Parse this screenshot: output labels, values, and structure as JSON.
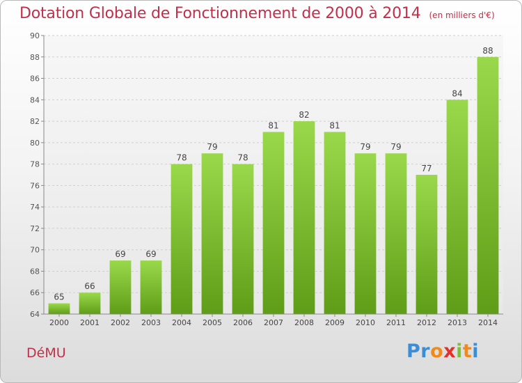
{
  "chart_data": {
    "type": "bar",
    "title": "Dotation Globale de Fonctionnement de 2000 à 2014",
    "unit": "(en milliers d'€)",
    "xlabel": "",
    "ylabel": "",
    "categories": [
      "2000",
      "2001",
      "2002",
      "2003",
      "2004",
      "2005",
      "2006",
      "2007",
      "2008",
      "2009",
      "2010",
      "2011",
      "2012",
      "2013",
      "2014"
    ],
    "values": [
      65,
      66,
      69,
      69,
      78,
      79,
      78,
      81,
      82,
      81,
      79,
      79,
      77,
      84,
      88
    ],
    "ylim": [
      64,
      90
    ],
    "yticks": [
      64,
      66,
      68,
      70,
      72,
      74,
      76,
      78,
      80,
      82,
      84,
      86,
      88,
      90
    ],
    "grid": true,
    "bar_color_top": "#9ad84b",
    "bar_color_bottom": "#5f9d18"
  },
  "footer": {
    "commune": "DéMU",
    "logo_letters": [
      {
        "char": "P",
        "color": "#3a8ed8"
      },
      {
        "char": "r",
        "color": "#3a8ed8"
      },
      {
        "char": "o",
        "color": "#f08a1c"
      },
      {
        "char": "x",
        "color": "#e0322a"
      },
      {
        "char": "i",
        "color": "#7cc230"
      },
      {
        "char": "t",
        "color": "#f08a1c"
      },
      {
        "char": "i",
        "color": "#3a8ed8"
      }
    ]
  }
}
